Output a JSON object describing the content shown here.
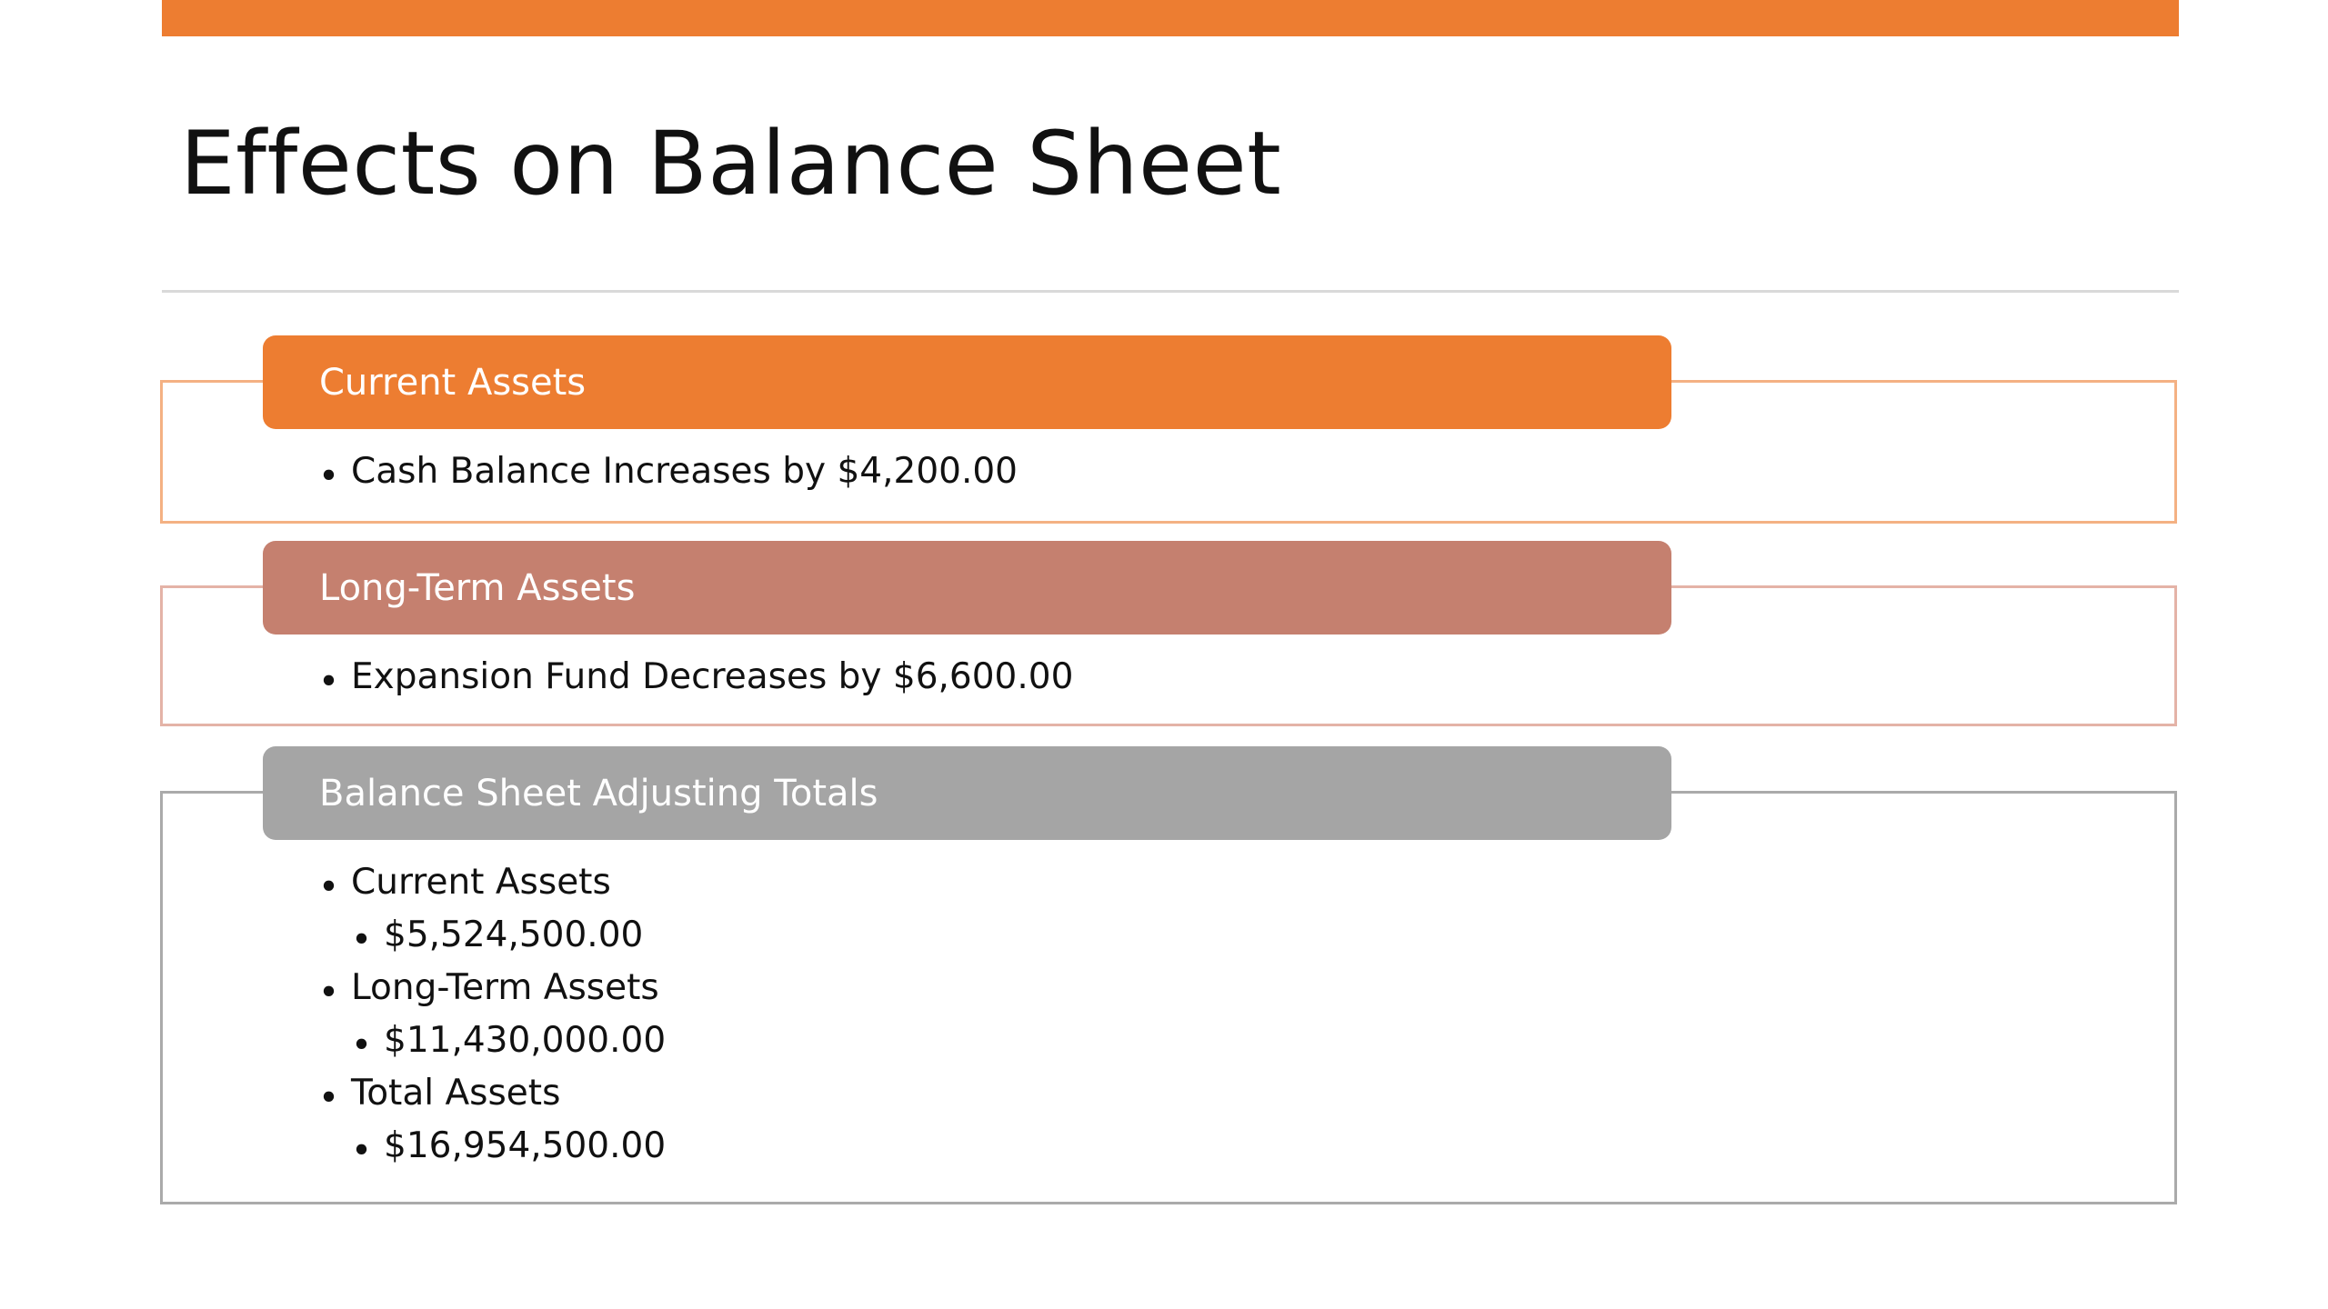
{
  "slide": {
    "title": "Effects on Balance Sheet"
  },
  "colors": {
    "accent": "#ED7D31",
    "rose": "#C5806F",
    "gray": "#A5A5A5"
  },
  "sections": [
    {
      "header": "Current Assets",
      "bullets": [
        "Cash Balance Increases by $4,200.00"
      ]
    },
    {
      "header": "Long-Term Assets",
      "bullets": [
        "Expansion Fund Decreases by $6,600.00"
      ]
    },
    {
      "header": "Balance Sheet Adjusting Totals",
      "items": [
        {
          "label": "Current Assets",
          "value": "$5,524,500.00"
        },
        {
          "label": "Long-Term Assets",
          "value": "$11,430,000.00"
        },
        {
          "label": "Total Assets",
          "value": "$16,954,500.00"
        }
      ]
    }
  ]
}
